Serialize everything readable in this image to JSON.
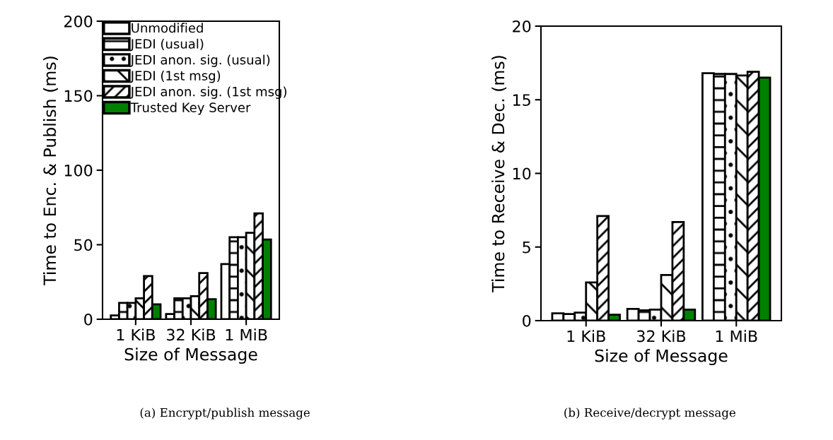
{
  "chart_data": [
    {
      "type": "bar",
      "xlabel": "Size of Message",
      "ylabel": "Time to Enc. & Publish (ms)",
      "categories": [
        "1 KiB",
        "32 KiB",
        "1 MiB"
      ],
      "ylim": [
        0,
        200
      ],
      "yticks": [
        0,
        50,
        100,
        150,
        200
      ],
      "legend": "top left",
      "grid": false,
      "series": [
        {
          "name": "Unmodified",
          "color": "#ffffff",
          "values": [
            2.5,
            3.5,
            37
          ]
        },
        {
          "name": "JEDI (usual)",
          "color": "#000000",
          "values": [
            11,
            14,
            55
          ]
        },
        {
          "name": "JEDI anon. sig. (usual)",
          "color": "#000000",
          "values": [
            11,
            14,
            55
          ]
        },
        {
          "name": "JEDI (1st msg)",
          "color": "#000000",
          "values": [
            14,
            15.5,
            58
          ]
        },
        {
          "name": "JEDI anon. sig. (1st msg)",
          "color": "#000000",
          "values": [
            29,
            31,
            71
          ]
        },
        {
          "name": "Trusted Key Server",
          "color": "#008000",
          "values": [
            10,
            13.5,
            53.5
          ]
        }
      ],
      "annotations": [
        "(a) Encrypt/publish message"
      ]
    },
    {
      "type": "bar",
      "xlabel": "Size of Message",
      "ylabel": "Time to Receive & Dec. (ms)",
      "categories": [
        "1 KiB",
        "32 KiB",
        "1 MiB"
      ],
      "ylim": [
        0,
        20
      ],
      "yticks": [
        0,
        5,
        10,
        15,
        20
      ],
      "legend": false,
      "grid": false,
      "series": [
        {
          "color": "#ffffff",
          "values": [
            0.5,
            0.8,
            16.8
          ]
        },
        {
          "color": "#000000",
          "values": [
            0.45,
            0.7,
            16.75
          ]
        },
        {
          "color": "#000000",
          "values": [
            0.55,
            0.75,
            16.75
          ]
        },
        {
          "color": "#000000",
          "values": [
            2.6,
            3.1,
            16.65
          ]
        },
        {
          "color": "#000000",
          "values": [
            7.1,
            6.7,
            16.9
          ]
        },
        {
          "color": "#008000",
          "values": [
            0.4,
            0.75,
            16.5
          ]
        }
      ],
      "annotations": [
        "(b) Receive/decrypt message"
      ]
    }
  ]
}
